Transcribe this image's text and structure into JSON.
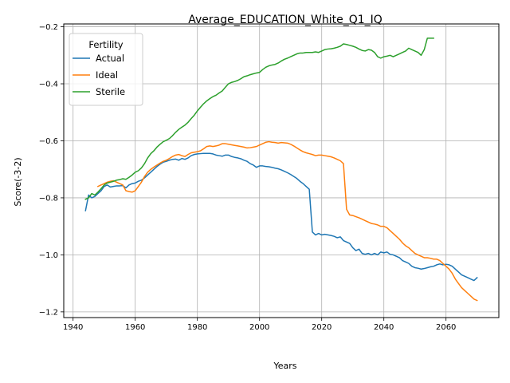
{
  "chart_data": {
    "type": "line",
    "title": "Average_EDUCATION_White_Q1_IQ",
    "xlabel": "Years",
    "ylabel": "Score(-3-2)",
    "xlim": [
      1937,
      2077
    ],
    "ylim": [
      -1.22,
      -0.19
    ],
    "xticks": [
      1940,
      1960,
      1980,
      2000,
      2020,
      2040,
      2060
    ],
    "yticks": [
      -1.2,
      -1.0,
      -0.8,
      -0.6,
      -0.4,
      -0.2
    ],
    "grid": true,
    "legend": {
      "title": "Fertility",
      "placement": "upper-left"
    },
    "series": [
      {
        "name": "Actual",
        "color": "#1f77b4",
        "x": [
          1944,
          1945,
          1946,
          1947,
          1948,
          1949,
          1950,
          1951,
          1952,
          1953,
          1954,
          1955,
          1956,
          1957,
          1958,
          1959,
          1960,
          1961,
          1962,
          1963,
          1964,
          1965,
          1966,
          1967,
          1968,
          1969,
          1970,
          1971,
          1972,
          1973,
          1974,
          1975,
          1976,
          1977,
          1978,
          1979,
          1980,
          1981,
          1982,
          1983,
          1984,
          1985,
          1986,
          1987,
          1988,
          1989,
          1990,
          1991,
          1992,
          1993,
          1994,
          1995,
          1996,
          1997,
          1998,
          1999,
          2000,
          2001,
          2002,
          2003,
          2004,
          2005,
          2006,
          2007,
          2008,
          2009,
          2010,
          2011,
          2012,
          2013,
          2014,
          2015,
          2016,
          2017,
          2018,
          2019,
          2020,
          2021,
          2022,
          2023,
          2024,
          2025,
          2026,
          2027,
          2028,
          2029,
          2030,
          2031,
          2032,
          2033,
          2034,
          2035,
          2036,
          2037,
          2038,
          2039,
          2040,
          2041,
          2042,
          2043,
          2044,
          2045,
          2046,
          2047,
          2048,
          2049,
          2050,
          2051,
          2052,
          2053,
          2054,
          2055,
          2056,
          2057,
          2058,
          2059,
          2060,
          2061,
          2062,
          2063,
          2064,
          2065,
          2066,
          2067,
          2068,
          2069,
          2070
        ],
        "y": [
          -0.845,
          -0.79,
          -0.8,
          -0.795,
          -0.785,
          -0.775,
          -0.76,
          -0.755,
          -0.762,
          -0.76,
          -0.758,
          -0.758,
          -0.757,
          -0.765,
          -0.755,
          -0.75,
          -0.748,
          -0.742,
          -0.738,
          -0.73,
          -0.72,
          -0.71,
          -0.7,
          -0.69,
          -0.682,
          -0.675,
          -0.672,
          -0.668,
          -0.665,
          -0.664,
          -0.668,
          -0.662,
          -0.665,
          -0.66,
          -0.652,
          -0.648,
          -0.646,
          -0.645,
          -0.644,
          -0.644,
          -0.644,
          -0.646,
          -0.65,
          -0.652,
          -0.654,
          -0.65,
          -0.65,
          -0.655,
          -0.658,
          -0.66,
          -0.663,
          -0.668,
          -0.672,
          -0.68,
          -0.685,
          -0.693,
          -0.688,
          -0.688,
          -0.69,
          -0.691,
          -0.693,
          -0.696,
          -0.698,
          -0.702,
          -0.707,
          -0.712,
          -0.718,
          -0.725,
          -0.732,
          -0.742,
          -0.75,
          -0.76,
          -0.77,
          -0.92,
          -0.93,
          -0.925,
          -0.93,
          -0.928,
          -0.93,
          -0.932,
          -0.935,
          -0.94,
          -0.937,
          -0.95,
          -0.955,
          -0.96,
          -0.975,
          -0.985,
          -0.98,
          -0.995,
          -0.998,
          -0.995,
          -1.0,
          -0.995,
          -1.0,
          -0.99,
          -0.993,
          -0.99,
          -0.998,
          -1.0,
          -1.005,
          -1.01,
          -1.02,
          -1.025,
          -1.03,
          -1.04,
          -1.045,
          -1.047,
          -1.05,
          -1.048,
          -1.045,
          -1.042,
          -1.04,
          -1.035,
          -1.032,
          -1.035,
          -1.033,
          -1.035,
          -1.04,
          -1.05,
          -1.06,
          -1.07,
          -1.075,
          -1.08,
          -1.085,
          -1.09,
          -1.08
        ]
      },
      {
        "name": "Ideal",
        "color": "#ff7f0e",
        "x": [
          1948,
          1949,
          1950,
          1951,
          1952,
          1953,
          1954,
          1955,
          1956,
          1957,
          1958,
          1959,
          1960,
          1961,
          1962,
          1963,
          1964,
          1965,
          1966,
          1967,
          1968,
          1969,
          1970,
          1971,
          1972,
          1973,
          1974,
          1975,
          1976,
          1977,
          1978,
          1979,
          1980,
          1981,
          1982,
          1983,
          1984,
          1985,
          1986,
          1987,
          1988,
          1989,
          1990,
          1991,
          1992,
          1993,
          1994,
          1995,
          1996,
          1997,
          1998,
          1999,
          2000,
          2001,
          2002,
          2003,
          2004,
          2005,
          2006,
          2007,
          2008,
          2009,
          2010,
          2011,
          2012,
          2013,
          2014,
          2015,
          2016,
          2017,
          2018,
          2019,
          2020,
          2021,
          2022,
          2023,
          2024,
          2025,
          2026,
          2027,
          2028,
          2029,
          2030,
          2031,
          2032,
          2033,
          2034,
          2035,
          2036,
          2037,
          2038,
          2039,
          2040,
          2041,
          2042,
          2043,
          2044,
          2045,
          2046,
          2047,
          2048,
          2049,
          2050,
          2051,
          2052,
          2053,
          2054,
          2055,
          2056,
          2057,
          2058,
          2059,
          2060,
          2061,
          2062,
          2063,
          2064,
          2065,
          2066,
          2067,
          2068,
          2069,
          2070
        ],
        "y": [
          -0.76,
          -0.755,
          -0.75,
          -0.745,
          -0.742,
          -0.74,
          -0.745,
          -0.75,
          -0.755,
          -0.775,
          -0.778,
          -0.78,
          -0.775,
          -0.76,
          -0.745,
          -0.725,
          -0.71,
          -0.7,
          -0.692,
          -0.685,
          -0.678,
          -0.672,
          -0.668,
          -0.662,
          -0.655,
          -0.65,
          -0.648,
          -0.652,
          -0.655,
          -0.648,
          -0.642,
          -0.64,
          -0.638,
          -0.635,
          -0.628,
          -0.62,
          -0.618,
          -0.62,
          -0.618,
          -0.615,
          -0.61,
          -0.61,
          -0.612,
          -0.614,
          -0.616,
          -0.618,
          -0.62,
          -0.622,
          -0.625,
          -0.624,
          -0.622,
          -0.62,
          -0.615,
          -0.61,
          -0.605,
          -0.603,
          -0.605,
          -0.606,
          -0.608,
          -0.606,
          -0.607,
          -0.608,
          -0.612,
          -0.618,
          -0.625,
          -0.632,
          -0.638,
          -0.642,
          -0.645,
          -0.648,
          -0.652,
          -0.65,
          -0.65,
          -0.652,
          -0.654,
          -0.656,
          -0.66,
          -0.665,
          -0.67,
          -0.68,
          -0.84,
          -0.86,
          -0.862,
          -0.866,
          -0.87,
          -0.875,
          -0.88,
          -0.885,
          -0.89,
          -0.892,
          -0.895,
          -0.9,
          -0.9,
          -0.905,
          -0.915,
          -0.925,
          -0.935,
          -0.945,
          -0.958,
          -0.968,
          -0.975,
          -0.985,
          -0.995,
          -1.0,
          -1.005,
          -1.01,
          -1.01,
          -1.012,
          -1.015,
          -1.015,
          -1.02,
          -1.03,
          -1.04,
          -1.05,
          -1.065,
          -1.085,
          -1.1,
          -1.115,
          -1.125,
          -1.135,
          -1.145,
          -1.155,
          -1.16
        ]
      },
      {
        "name": "Sterile",
        "color": "#2ca02c",
        "x": [
          1944,
          1945,
          1946,
          1947,
          1948,
          1949,
          1950,
          1951,
          1952,
          1953,
          1954,
          1955,
          1956,
          1957,
          1958,
          1959,
          1960,
          1961,
          1962,
          1963,
          1964,
          1965,
          1966,
          1967,
          1968,
          1969,
          1970,
          1971,
          1972,
          1973,
          1974,
          1975,
          1976,
          1977,
          1978,
          1979,
          1980,
          1981,
          1982,
          1983,
          1984,
          1985,
          1986,
          1987,
          1988,
          1989,
          1990,
          1991,
          1992,
          1993,
          1994,
          1995,
          1996,
          1997,
          1998,
          1999,
          2000,
          2001,
          2002,
          2003,
          2004,
          2005,
          2006,
          2007,
          2008,
          2009,
          2010,
          2011,
          2012,
          2013,
          2014,
          2015,
          2016,
          2017,
          2018,
          2019,
          2020,
          2021,
          2022,
          2023,
          2024,
          2025,
          2026,
          2027,
          2028,
          2029,
          2030,
          2031,
          2032,
          2033,
          2034,
          2035,
          2036,
          2037,
          2038,
          2039,
          2040,
          2041,
          2042,
          2043,
          2044,
          2045,
          2046,
          2047,
          2048,
          2049,
          2050,
          2051,
          2052,
          2053,
          2054,
          2055,
          2056
        ],
        "y": [
          -0.805,
          -0.8,
          -0.785,
          -0.79,
          -0.78,
          -0.768,
          -0.755,
          -0.748,
          -0.745,
          -0.742,
          -0.738,
          -0.736,
          -0.733,
          -0.735,
          -0.728,
          -0.72,
          -0.71,
          -0.705,
          -0.695,
          -0.68,
          -0.66,
          -0.645,
          -0.635,
          -0.622,
          -0.612,
          -0.603,
          -0.598,
          -0.592,
          -0.582,
          -0.57,
          -0.56,
          -0.552,
          -0.545,
          -0.535,
          -0.522,
          -0.51,
          -0.495,
          -0.482,
          -0.47,
          -0.46,
          -0.452,
          -0.445,
          -0.44,
          -0.432,
          -0.425,
          -0.412,
          -0.4,
          -0.395,
          -0.392,
          -0.388,
          -0.382,
          -0.375,
          -0.372,
          -0.368,
          -0.365,
          -0.362,
          -0.36,
          -0.35,
          -0.342,
          -0.337,
          -0.334,
          -0.332,
          -0.327,
          -0.32,
          -0.314,
          -0.31,
          -0.305,
          -0.3,
          -0.295,
          -0.292,
          -0.292,
          -0.29,
          -0.29,
          -0.29,
          -0.288,
          -0.29,
          -0.285,
          -0.28,
          -0.278,
          -0.277,
          -0.275,
          -0.272,
          -0.268,
          -0.26,
          -0.262,
          -0.265,
          -0.268,
          -0.272,
          -0.278,
          -0.283,
          -0.285,
          -0.28,
          -0.282,
          -0.29,
          -0.305,
          -0.31,
          -0.305,
          -0.303,
          -0.3,
          -0.305,
          -0.3,
          -0.295,
          -0.29,
          -0.285,
          -0.275,
          -0.28,
          -0.285,
          -0.29,
          -0.3,
          -0.28,
          -0.24,
          -0.24,
          -0.24
        ]
      }
    ]
  }
}
